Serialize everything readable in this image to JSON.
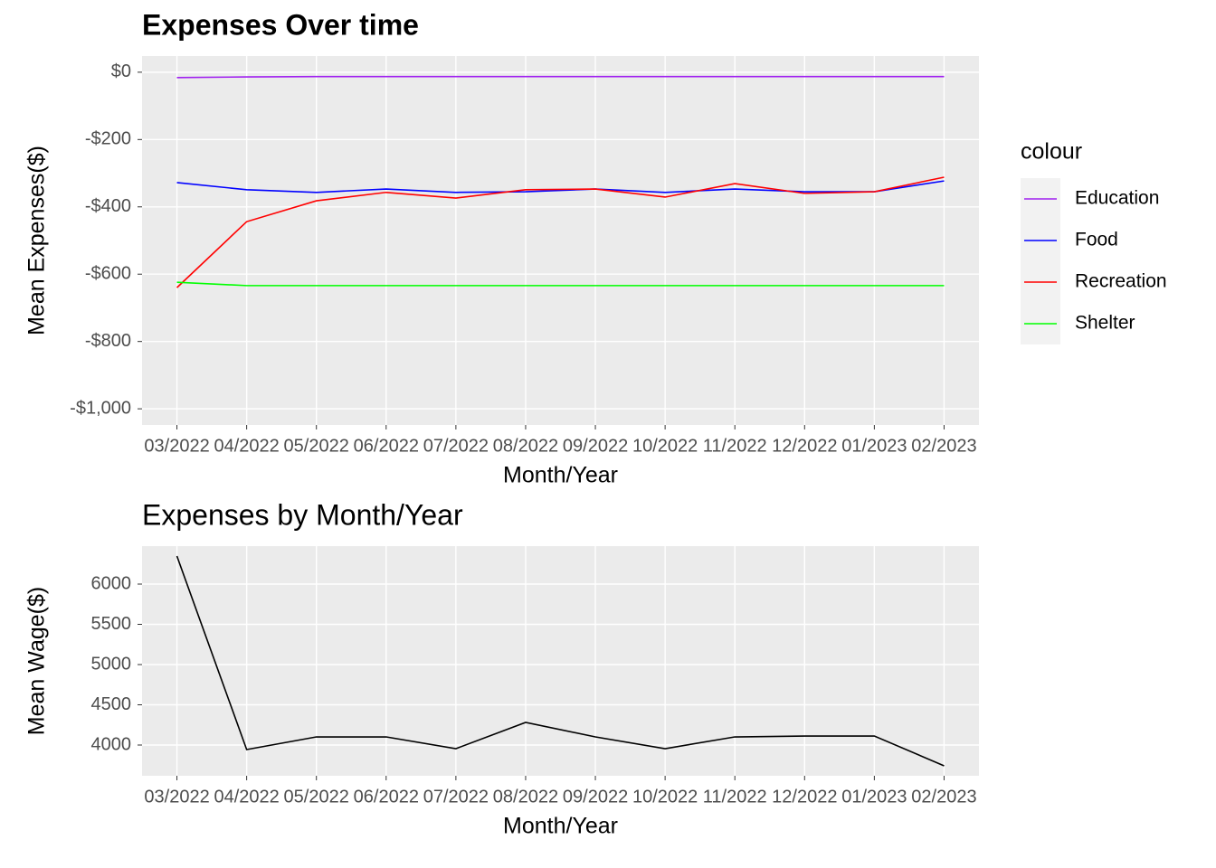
{
  "chart_data": [
    {
      "type": "line",
      "title": "Expenses Over time",
      "title_bold": true,
      "x_label": "Month/Year",
      "y_label": "Mean Expenses($)",
      "categories": [
        "03/2022",
        "04/2022",
        "05/2022",
        "06/2022",
        "07/2022",
        "08/2022",
        "09/2022",
        "10/2022",
        "11/2022",
        "12/2022",
        "01/2023",
        "02/2023"
      ],
      "series": [
        {
          "name": "Education",
          "color": "#a020f0",
          "values": [
            -16,
            -14,
            -13,
            -13,
            -13,
            -13,
            -13,
            -13,
            -13,
            -13,
            -13,
            -13
          ]
        },
        {
          "name": "Food",
          "color": "#0000ff",
          "values": [
            -328,
            -349,
            -357,
            -347,
            -357,
            -355,
            -347,
            -357,
            -347,
            -355,
            -355,
            -323
          ]
        },
        {
          "name": "Recreation",
          "color": "#ff0000",
          "values": [
            -640,
            -444,
            -382,
            -357,
            -374,
            -349,
            -347,
            -371,
            -331,
            -360,
            -355,
            -312
          ]
        },
        {
          "name": "Shelter",
          "color": "#00ff00",
          "values": [
            -624,
            -634,
            -634,
            -634,
            -634,
            -634,
            -634,
            -634,
            -634,
            -634,
            -634,
            -634
          ]
        }
      ],
      "ylim": [
        -1048,
        48
      ],
      "yticks": [
        {
          "value": 0,
          "label": "$0"
        },
        {
          "value": -200,
          "label": "-$200"
        },
        {
          "value": -400,
          "label": "-$400"
        },
        {
          "value": -600,
          "label": "-$600"
        },
        {
          "value": -800,
          "label": "-$800"
        },
        {
          "value": -1000,
          "label": "-$1,000"
        }
      ],
      "grid": true,
      "legend_title": "colour",
      "legend_position": "right"
    },
    {
      "type": "line",
      "title": "Expenses by Month/Year",
      "title_bold": false,
      "x_label": "Month/Year",
      "y_label": "Mean Wage($)",
      "categories": [
        "03/2022",
        "04/2022",
        "05/2022",
        "06/2022",
        "07/2022",
        "08/2022",
        "09/2022",
        "10/2022",
        "11/2022",
        "12/2022",
        "01/2023",
        "02/2023"
      ],
      "values": [
        6348,
        3944,
        4101,
        4101,
        3955,
        4281,
        4101,
        3955,
        4101,
        4112,
        4112,
        3742
      ],
      "color": "#000000",
      "ylim": [
        3618,
        6472
      ],
      "yticks": [
        4000,
        4500,
        5000,
        5500,
        6000
      ],
      "grid": true
    }
  ]
}
